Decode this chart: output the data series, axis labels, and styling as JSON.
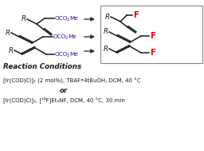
{
  "background_color": "#ffffff",
  "fig_width": 2.56,
  "fig_height": 1.89,
  "dpi": 100,
  "reaction_conditions_label": "Reaction Conditions",
  "condition1": "[Ir(COD)Cl]₂ (2 mol%), TBAF•4tBuOH, DCM, 40 °C",
  "condition_or": "or",
  "condition2": "[Ir(COD)Cl]₂, [¹⁸F]Et₄NF, DCM, 40 °C, 30 min",
  "box_color": "#888888",
  "arrow_color": "#333333",
  "F_color": "#dd0000",
  "blue_color": "#1a1aaa",
  "black_color": "#1a1a1a"
}
